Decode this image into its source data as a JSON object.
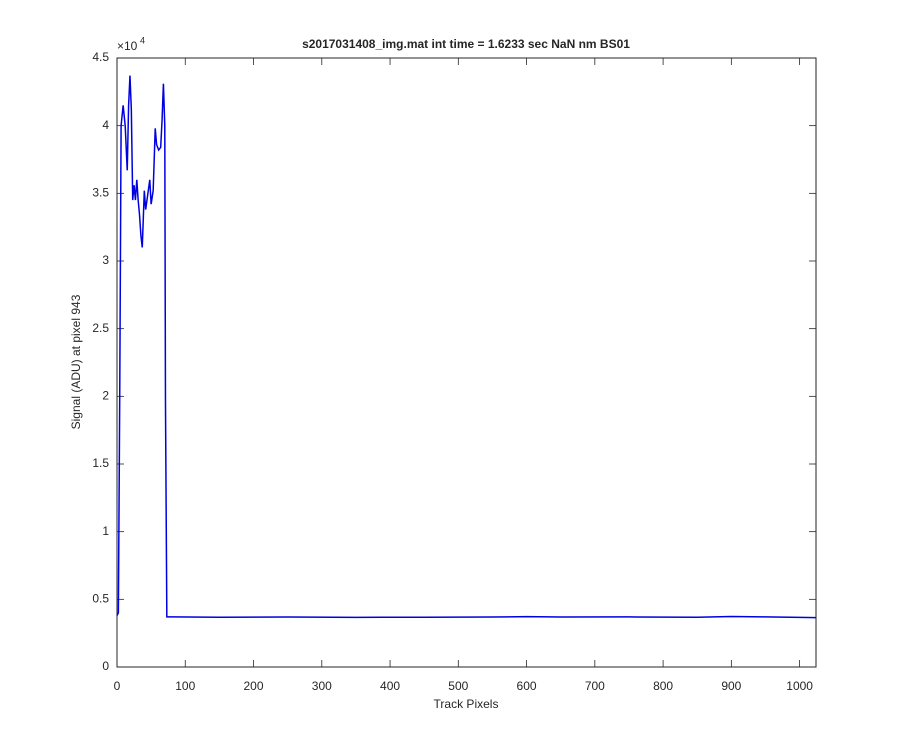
{
  "chart_data": {
    "type": "line",
    "title": "s2017031408_img.mat int time = 1.6233 sec  NaN nm BS01",
    "x_label": "Track Pixels",
    "y_label": "Signal (ADU) at pixel 943",
    "y_multiplier_base": "×10",
    "y_multiplier_exponent": "4",
    "color": "#0000e0",
    "x": [
      0,
      2,
      4,
      6,
      9,
      12,
      15,
      17,
      19,
      21,
      23,
      25,
      27,
      29,
      31,
      33,
      35,
      37,
      40,
      42,
      45,
      48,
      50,
      53,
      56,
      58,
      61,
      64,
      66,
      68,
      70,
      71,
      73,
      80,
      150,
      250,
      350,
      450,
      550,
      600,
      650,
      750,
      850,
      900,
      950,
      1024
    ],
    "values": [
      0.38,
      0.4,
      2.0,
      4.0,
      4.15,
      4.0,
      3.67,
      4.15,
      4.37,
      4.12,
      3.45,
      3.56,
      3.45,
      3.6,
      3.45,
      3.34,
      3.19,
      3.1,
      3.52,
      3.38,
      3.49,
      3.6,
      3.42,
      3.52,
      3.98,
      3.86,
      3.82,
      3.84,
      4.04,
      4.31,
      4.0,
      1.97,
      0.37,
      0.37,
      0.368,
      0.369,
      0.367,
      0.368,
      0.369,
      0.372,
      0.369,
      0.37,
      0.368,
      0.373,
      0.37,
      0.365
    ],
    "xlim": [
      0,
      1024
    ],
    "xticks": [
      0,
      100,
      200,
      300,
      400,
      500,
      600,
      700,
      800,
      900,
      1000
    ],
    "ylim": [
      0,
      4.5
    ],
    "yticks": [
      0,
      0.5,
      1,
      1.5,
      2,
      2.5,
      3,
      3.5,
      4,
      4.5
    ]
  }
}
